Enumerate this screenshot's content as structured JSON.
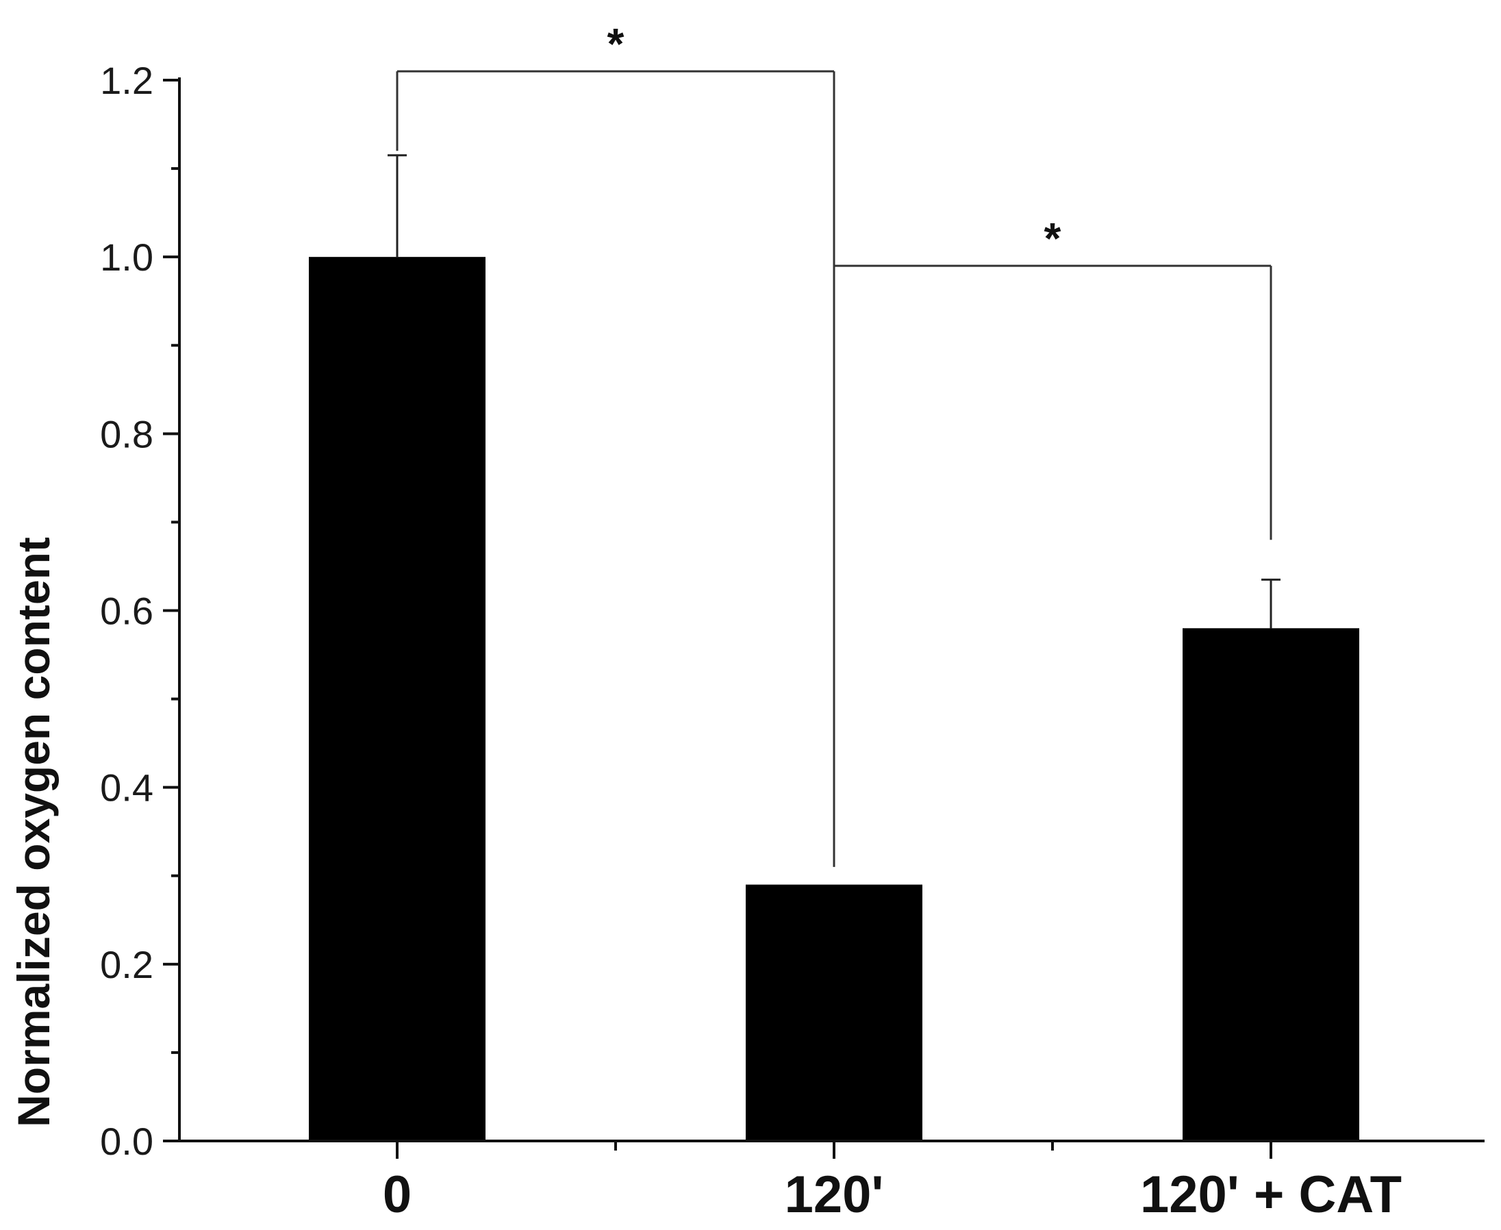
{
  "chart_data": {
    "type": "bar",
    "categories": [
      "0",
      "120'",
      "120' + CAT"
    ],
    "values": [
      1.0,
      0.29,
      0.58
    ],
    "error_upper": [
      0.115,
      0.0,
      0.055
    ],
    "title": "",
    "xlabel": "",
    "ylabel": "Normalized oxygen content",
    "ylim": [
      0.0,
      1.2
    ],
    "yticks": [
      "0.0",
      "0.2",
      "0.4",
      "0.6",
      "0.8",
      "1.0",
      "1.2"
    ],
    "ytick_values": [
      0.0,
      0.2,
      0.4,
      0.6,
      0.8,
      1.0,
      1.2
    ],
    "y_minor_step": 0.1,
    "grid": false,
    "bar_color": "#000000",
    "significance": [
      {
        "from": 0,
        "to": 1,
        "label": "*",
        "y": 1.21,
        "left_drop": 1.12,
        "right_drop": 0.31
      },
      {
        "from": 1,
        "to": 2,
        "label": "*",
        "y": 0.99,
        "left_drop": null,
        "right_drop": 0.68
      }
    ]
  }
}
